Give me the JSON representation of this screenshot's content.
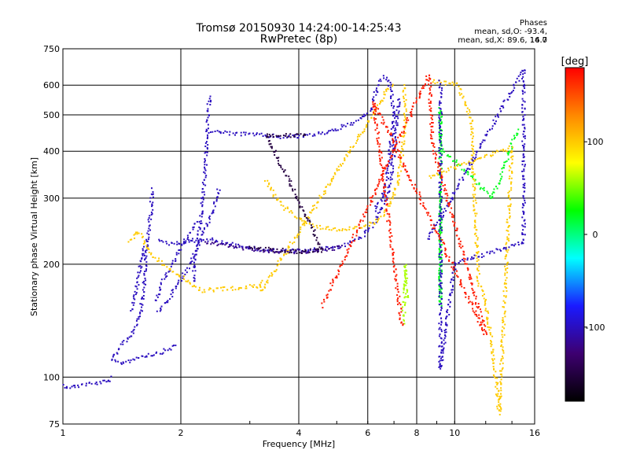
{
  "header": {
    "title": "Tromsø 20150930 14:24:00-14:25:43",
    "subtitle": "RwPretec (8p)"
  },
  "phases": {
    "heading": "Phases",
    "line_o": "mean, sd,O: -93.4, 14.0",
    "line_x": "mean, sd,X: 89.6, 16.7"
  },
  "chart_data": {
    "type": "scatter",
    "xlabel": "Frequency [MHz]",
    "ylabel": "Stationary phase Virtual Height [km]",
    "xscale": "log",
    "yscale": "log",
    "xlim": [
      1,
      16
    ],
    "ylim": [
      75,
      750
    ],
    "xticks": [
      1,
      2,
      4,
      6,
      8,
      10,
      16
    ],
    "yticks": [
      75,
      100,
      200,
      300,
      400,
      500,
      600,
      750
    ],
    "grid_x": [
      2,
      4,
      6,
      8,
      10
    ],
    "grid_y": [
      100,
      200,
      300,
      400,
      500,
      600
    ],
    "colorbar": {
      "label": "[deg]",
      "range": [
        -180,
        180
      ],
      "ticks": [
        100,
        0,
        -100
      ],
      "colors": [
        "#000000",
        "#3d0070",
        "#1a1aff",
        "#00ffff",
        "#00ff00",
        "#ffff00",
        "#ff8800",
        "#ff0000"
      ]
    },
    "traces": [
      {
        "phase": -100,
        "points": [
          [
            1.0,
            95
          ],
          [
            1.05,
            94
          ],
          [
            1.1,
            95
          ],
          [
            1.15,
            96
          ],
          [
            1.2,
            96
          ],
          [
            1.25,
            97
          ],
          [
            1.3,
            97
          ],
          [
            1.34,
            100
          ]
        ]
      },
      {
        "phase": -100,
        "points": [
          [
            1.34,
            110
          ],
          [
            1.4,
            109
          ],
          [
            1.45,
            110
          ],
          [
            1.5,
            111
          ],
          [
            1.55,
            113
          ],
          [
            1.6,
            114
          ],
          [
            1.7,
            115
          ],
          [
            1.8,
            117
          ],
          [
            1.9,
            120
          ],
          [
            1.95,
            122
          ]
        ]
      },
      {
        "phase": -100,
        "points": [
          [
            1.34,
            112
          ],
          [
            1.38,
            118
          ],
          [
            1.45,
            125
          ],
          [
            1.5,
            130
          ],
          [
            1.55,
            140
          ],
          [
            1.58,
            150
          ],
          [
            1.6,
            165
          ],
          [
            1.62,
            185
          ],
          [
            1.63,
            210
          ],
          [
            1.65,
            240
          ],
          [
            1.68,
            280
          ],
          [
            1.69,
            320
          ]
        ]
      },
      {
        "phase": -100,
        "points": [
          [
            1.5,
            150
          ],
          [
            1.55,
            175
          ],
          [
            1.58,
            200
          ],
          [
            1.6,
            215
          ],
          [
            1.62,
            225
          ]
        ]
      },
      {
        "phase": -100,
        "points": [
          [
            1.72,
            160
          ],
          [
            1.8,
            180
          ],
          [
            1.9,
            200
          ],
          [
            2.0,
            220
          ],
          [
            2.1,
            240
          ],
          [
            2.2,
            260
          ]
        ]
      },
      {
        "phase": -100,
        "points": [
          [
            1.75,
            150
          ],
          [
            1.85,
            160
          ],
          [
            1.95,
            175
          ],
          [
            2.05,
            190
          ],
          [
            2.15,
            210
          ],
          [
            2.25,
            235
          ],
          [
            2.35,
            260
          ],
          [
            2.45,
            290
          ],
          [
            2.5,
            320
          ]
        ]
      },
      {
        "phase": -100,
        "points": [
          [
            2.15,
            180
          ],
          [
            2.2,
            220
          ],
          [
            2.25,
            260
          ],
          [
            2.28,
            300
          ],
          [
            2.3,
            340
          ],
          [
            2.32,
            400
          ],
          [
            2.34,
            450
          ],
          [
            2.35,
            490
          ],
          [
            2.36,
            540
          ],
          [
            2.37,
            570
          ]
        ]
      },
      {
        "phase": -100,
        "points": [
          [
            1.75,
            230
          ],
          [
            1.8,
            228
          ],
          [
            1.9,
            227
          ],
          [
            2.0,
            228
          ],
          [
            2.1,
            230
          ],
          [
            2.2,
            232
          ],
          [
            2.3,
            233
          ],
          [
            2.4,
            232
          ],
          [
            2.5,
            230
          ],
          [
            2.6,
            228
          ],
          [
            2.8,
            224
          ],
          [
            3.0,
            221
          ],
          [
            3.3,
            218
          ],
          [
            3.7,
            217
          ],
          [
            4.0,
            217
          ],
          [
            4.5,
            219
          ],
          [
            5.0,
            222
          ],
          [
            5.3,
            226
          ],
          [
            5.6,
            232
          ],
          [
            5.9,
            240
          ],
          [
            6.1,
            250
          ],
          [
            6.3,
            262
          ],
          [
            6.5,
            280
          ],
          [
            6.7,
            300
          ],
          [
            6.85,
            330
          ],
          [
            6.95,
            370
          ],
          [
            7.05,
            420
          ],
          [
            7.1,
            470
          ],
          [
            7.15,
            510
          ],
          [
            7.2,
            560
          ]
        ]
      },
      {
        "phase": -100,
        "points": [
          [
            2.4,
            450
          ],
          [
            2.6,
            448
          ],
          [
            2.8,
            445
          ],
          [
            3.0,
            443
          ],
          [
            3.3,
            440
          ],
          [
            3.6,
            437
          ],
          [
            4.0,
            438
          ],
          [
            4.5,
            445
          ],
          [
            5.0,
            458
          ],
          [
            5.5,
            475
          ],
          [
            5.8,
            490
          ],
          [
            6.0,
            505
          ],
          [
            6.1,
            515
          ],
          [
            6.2,
            530
          ]
        ]
      },
      {
        "phase": -100,
        "points": [
          [
            6.2,
            540
          ],
          [
            6.3,
            580
          ],
          [
            6.45,
            610
          ],
          [
            6.6,
            630
          ],
          [
            6.8,
            620
          ],
          [
            6.9,
            560
          ],
          [
            7.0,
            500
          ],
          [
            6.9,
            440
          ],
          [
            6.8,
            380
          ],
          [
            6.7,
            330
          ],
          [
            6.5,
            300
          ],
          [
            6.2,
            275
          ]
        ]
      },
      {
        "phase": 100,
        "points": [
          [
            3.3,
            335
          ],
          [
            3.5,
            300
          ],
          [
            3.7,
            282
          ],
          [
            4.0,
            265
          ],
          [
            4.3,
            255
          ],
          [
            4.6,
            250
          ],
          [
            5.0,
            248
          ],
          [
            5.3,
            248
          ],
          [
            5.6,
            250
          ],
          [
            5.9,
            253
          ],
          [
            6.2,
            258
          ],
          [
            6.5,
            268
          ],
          [
            6.8,
            285
          ],
          [
            7.1,
            320
          ],
          [
            7.3,
            370
          ],
          [
            7.4,
            430
          ],
          [
            7.5,
            500
          ],
          [
            7.45,
            560
          ],
          [
            7.4,
            600
          ]
        ]
      },
      {
        "phase": 100,
        "points": [
          [
            1.48,
            230
          ],
          [
            1.55,
            245
          ],
          [
            1.7,
            210
          ],
          [
            2.25,
            170
          ],
          [
            3.15,
            175
          ],
          [
            3.2,
            180
          ],
          [
            3.22,
            170
          ],
          [
            6.6,
            560
          ],
          [
            6.7,
            580
          ],
          [
            7.0,
            600
          ]
        ]
      },
      {
        "phase": -120,
        "points": [
          [
            2.3,
            230
          ],
          [
            2.5,
            226
          ],
          [
            2.8,
            222
          ],
          [
            3.2,
            218
          ],
          [
            3.6,
            216
          ],
          [
            4.2,
            216
          ],
          [
            4.8,
            219
          ],
          [
            5.2,
            223
          ]
        ]
      },
      {
        "phase": -150,
        "points": [
          [
            3.0,
            222
          ],
          [
            3.5,
            218
          ],
          [
            4.0,
            216
          ],
          [
            4.6,
            218
          ],
          [
            3.3,
            443
          ],
          [
            3.8,
            440
          ],
          [
            4.2,
            440
          ]
        ]
      },
      {
        "phase": 20,
        "points": [
          [
            9.2,
            310
          ],
          [
            9.2,
            180
          ],
          [
            9.2,
            155
          ],
          [
            9.2,
            520
          ],
          [
            9.2,
            410
          ],
          [
            12.5,
            300
          ],
          [
            14.5,
            460
          ]
        ]
      },
      {
        "phase": 100,
        "points": [
          [
            8.8,
            615
          ],
          [
            10.2,
            600
          ],
          [
            11.0,
            490
          ],
          [
            11.5,
            180
          ],
          [
            12.0,
            160
          ],
          [
            12.6,
            110
          ],
          [
            13.0,
            80
          ],
          [
            14.0,
            410
          ],
          [
            8.5,
            340
          ]
        ]
      },
      {
        "phase": -100,
        "points": [
          [
            9.2,
            610
          ],
          [
            9.2,
            105
          ],
          [
            10.0,
            200
          ],
          [
            15.0,
            230
          ],
          [
            15.0,
            340
          ],
          [
            15.0,
            660
          ],
          [
            8.5,
            230
          ]
        ]
      },
      {
        "phase": 170,
        "points": [
          [
            4.6,
            155
          ],
          [
            8.6,
            640
          ],
          [
            8.8,
            410
          ],
          [
            12.0,
            130
          ],
          [
            6.2,
            545
          ],
          [
            7.35,
            135
          ]
        ]
      },
      {
        "phase": 60,
        "points": [
          [
            7.4,
            140
          ],
          [
            7.5,
            200
          ],
          [
            7.6,
            160
          ]
        ]
      }
    ]
  }
}
